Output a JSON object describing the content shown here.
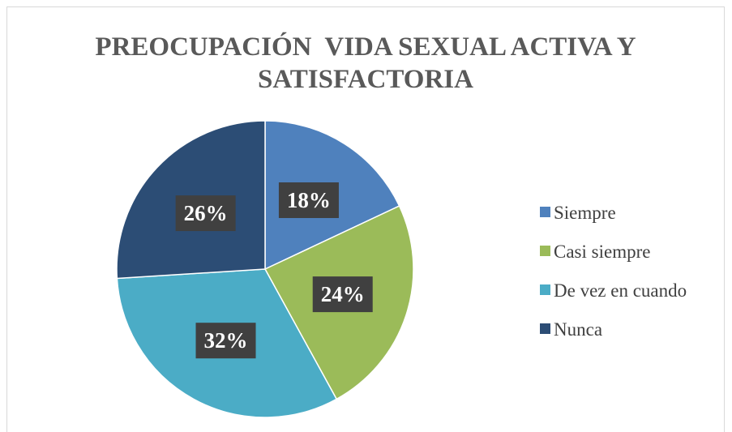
{
  "chart_data": {
    "type": "pie",
    "title": "PREOCUPACIÓN  VIDA SEXUAL ACTIVA Y SATISFACTORIA",
    "categories": [
      "Siempre",
      "Casi siempre",
      "De vez en cuando",
      "Nunca"
    ],
    "values": [
      18,
      24,
      32,
      26
    ],
    "value_labels": [
      "18%",
      "24%",
      "32%",
      "26%"
    ],
    "colors": [
      "#4f81bd",
      "#9bbb59",
      "#4bacc6",
      "#2c4d75"
    ],
    "legend": "right"
  }
}
